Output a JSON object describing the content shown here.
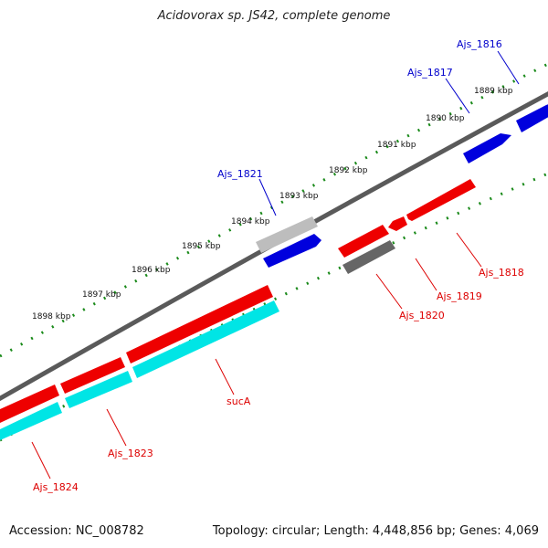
{
  "title": "Acidovorax sp. JS42, complete genome",
  "footer": {
    "accession": "Accession: NC_008782",
    "summary": "Topology: circular; Length: 4,448,856 bp; Genes: 4,069"
  },
  "colors": {
    "forward_cds": "#0000dd",
    "reverse_cds": "#ee0000",
    "forward_other": "#bbbbbb",
    "reverse_other": "#666666",
    "reverse_cds_2": "#00e5e5",
    "backbone": "#888888",
    "ticks": "#1a8a1a",
    "label_forward": "#0000cc",
    "label_reverse": "#dd0000"
  },
  "scale_labels": [
    {
      "kbp": 1889,
      "text": "1889 kbp"
    },
    {
      "kbp": 1890,
      "text": "1890 kbp"
    },
    {
      "kbp": 1891,
      "text": "1891 kbp"
    },
    {
      "kbp": 1892,
      "text": "1892 kbp"
    },
    {
      "kbp": 1893,
      "text": "1893 kbp"
    },
    {
      "kbp": 1894,
      "text": "1894 kbp"
    },
    {
      "kbp": 1895,
      "text": "1895 kbp"
    },
    {
      "kbp": 1896,
      "text": "1896 kbp"
    },
    {
      "kbp": 1897,
      "text": "1897 kbp"
    },
    {
      "kbp": 1898,
      "text": "1898 kbp"
    }
  ],
  "genes": [
    {
      "name": "Ajs_1816",
      "strand": "forward",
      "type": "cds"
    },
    {
      "name": "Ajs_1817",
      "strand": "forward",
      "type": "cds"
    },
    {
      "name": "Ajs_1821",
      "strand": "forward",
      "type": "cds"
    },
    {
      "name": "Ajs_1818",
      "strand": "reverse",
      "type": "cds"
    },
    {
      "name": "Ajs_1819",
      "strand": "reverse",
      "type": "cds"
    },
    {
      "name": "Ajs_1820",
      "strand": "reverse",
      "type": "other"
    },
    {
      "name": "sucA",
      "strand": "reverse",
      "type": "cds"
    },
    {
      "name": "Ajs_1823",
      "strand": "reverse",
      "type": "cds"
    },
    {
      "name": "Ajs_1824",
      "strand": "reverse",
      "type": "cds"
    }
  ]
}
